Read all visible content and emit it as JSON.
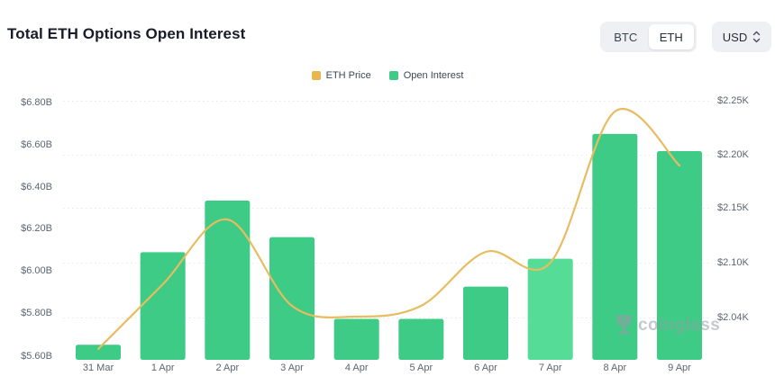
{
  "header": {
    "title": "Total ETH Options Open Interest"
  },
  "controls": {
    "coin_toggle": {
      "options": [
        "BTC",
        "ETH"
      ],
      "selected": "ETH"
    },
    "currency_select": {
      "value": "USD"
    }
  },
  "legend": [
    {
      "label": "ETH Price",
      "color": "#e8b64f"
    },
    {
      "label": "Open Interest",
      "color": "#3ecb85"
    }
  ],
  "watermark": {
    "text": "coinglass"
  },
  "chart_data": {
    "type": "bar",
    "subtype": "bar+line dual axis",
    "title": "Total ETH Options Open Interest",
    "categories": [
      "31 Mar",
      "1 Apr",
      "2 Apr",
      "3 Apr",
      "4 Apr",
      "5 Apr",
      "6 Apr",
      "7 Apr",
      "8 Apr",
      "9 Apr"
    ],
    "series": [
      {
        "name": "Open Interest",
        "type": "bar",
        "axis": "left",
        "unit": "billion USD",
        "values": [
          5.67,
          6.1,
          6.34,
          6.17,
          5.79,
          5.79,
          5.94,
          6.07,
          6.65,
          6.57
        ],
        "color": "#3ecb85",
        "highlight_index": 7,
        "highlight_color": "#55dd98"
      },
      {
        "name": "ETH Price",
        "type": "line",
        "axis": "right",
        "unit": "thousand USD",
        "values": [
          2.02,
          2.08,
          2.14,
          2.06,
          2.05,
          2.06,
          2.11,
          2.1,
          2.24,
          2.19
        ],
        "color": "#e8bc60"
      }
    ],
    "left_axis": {
      "ticks": [
        "$6.80B",
        "$6.60B",
        "$6.40B",
        "$6.20B",
        "$6.00B",
        "$5.80B",
        "$5.60B"
      ],
      "min": 5.6,
      "max": 6.8
    },
    "right_axis": {
      "ticks": [
        "$2.25K",
        "$2.20K",
        "$2.15K",
        "$2.10K",
        "$2.04K"
      ]
    },
    "grid": "horizontal dotted",
    "legend_position": "top center"
  }
}
